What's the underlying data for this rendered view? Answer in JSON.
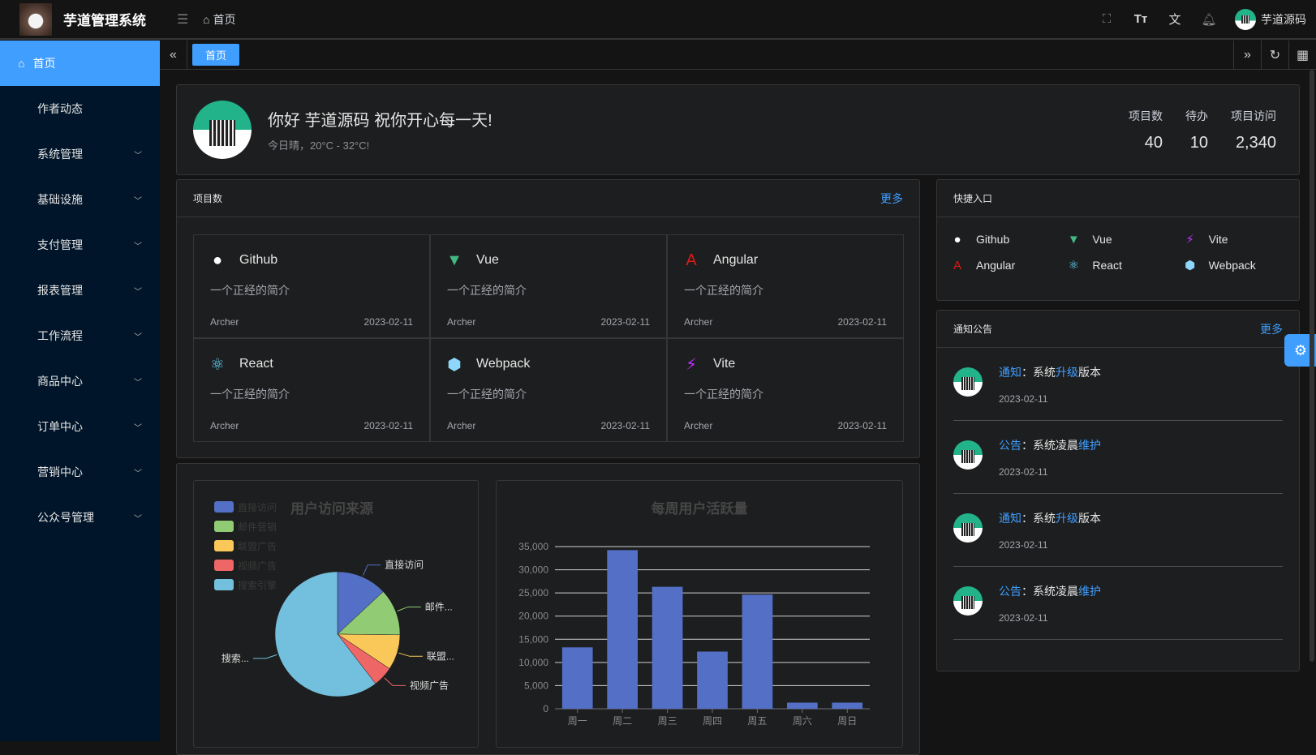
{
  "header": {
    "app_title": "芋道管理系统",
    "breadcrumb": "首页",
    "username": "芋道源码"
  },
  "sidebar": {
    "items": [
      {
        "label": "首页",
        "active": true
      },
      {
        "label": "作者动态"
      },
      {
        "label": "系统管理",
        "expandable": true
      },
      {
        "label": "基础设施",
        "expandable": true
      },
      {
        "label": "支付管理",
        "expandable": true
      },
      {
        "label": "报表管理",
        "expandable": true
      },
      {
        "label": "工作流程",
        "expandable": true
      },
      {
        "label": "商品中心",
        "expandable": true
      },
      {
        "label": "订单中心",
        "expandable": true
      },
      {
        "label": "营销中心",
        "expandable": true
      },
      {
        "label": "公众号管理",
        "expandable": true
      }
    ]
  },
  "tabs": [
    {
      "label": "首页",
      "active": true
    }
  ],
  "welcome": {
    "greeting": "你好 芋道源码 祝你开心每一天!",
    "weather": "今日晴，20°C - 32°C!",
    "stats": [
      {
        "label": "项目数",
        "value": "40"
      },
      {
        "label": "待办",
        "value": "10"
      },
      {
        "label": "项目访问",
        "value": "2,340"
      }
    ]
  },
  "projects": {
    "title": "项目数",
    "more": "更多",
    "items": [
      {
        "name": "Github",
        "icon": "github-icon",
        "color": "#ffffff",
        "desc": "一个正经的简介",
        "author": "Archer",
        "date": "2023-02-11"
      },
      {
        "name": "Vue",
        "icon": "vue-icon",
        "color": "#42b883",
        "desc": "一个正经的简介",
        "author": "Archer",
        "date": "2023-02-11"
      },
      {
        "name": "Angular",
        "icon": "angular-icon",
        "color": "#dd1b16",
        "desc": "一个正经的简介",
        "author": "Archer",
        "date": "2023-02-11"
      },
      {
        "name": "React",
        "icon": "react-icon",
        "color": "#61dafb",
        "desc": "一个正经的简介",
        "author": "Archer",
        "date": "2023-02-11"
      },
      {
        "name": "Webpack",
        "icon": "webpack-icon",
        "color": "#8ed6fb",
        "desc": "一个正经的简介",
        "author": "Archer",
        "date": "2023-02-11"
      },
      {
        "name": "Vite",
        "icon": "vite-icon",
        "color": "#bd34fe",
        "desc": "一个正经的简介",
        "author": "Archer",
        "date": "2023-02-11"
      }
    ]
  },
  "quick": {
    "title": "快捷入口",
    "items": [
      {
        "name": "Github",
        "icon": "github-icon",
        "color": "#ffffff"
      },
      {
        "name": "Vue",
        "icon": "vue-icon",
        "color": "#42b883"
      },
      {
        "name": "Vite",
        "icon": "vite-icon",
        "color": "#bd34fe"
      },
      {
        "name": "Angular",
        "icon": "angular-icon",
        "color": "#dd1b16"
      },
      {
        "name": "React",
        "icon": "react-icon",
        "color": "#61dafb"
      },
      {
        "name": "Webpack",
        "icon": "webpack-icon",
        "color": "#8ed6fb"
      }
    ]
  },
  "notice": {
    "title": "通知公告",
    "more": "更多",
    "items": [
      {
        "type": "通知",
        "sep": "：",
        "p1": "系统",
        "hl": "升级",
        "p2": "版本",
        "date": "2023-02-11"
      },
      {
        "type": "公告",
        "sep": "：",
        "p1": "系统凌晨",
        "hl": "维护",
        "p2": "",
        "date": "2023-02-11"
      },
      {
        "type": "通知",
        "sep": "：",
        "p1": "系统",
        "hl": "升级",
        "p2": "版本",
        "date": "2023-02-11"
      },
      {
        "type": "公告",
        "sep": "：",
        "p1": "系统凌晨",
        "hl": "维护",
        "p2": "",
        "date": "2023-02-11"
      }
    ]
  },
  "chart_data": [
    {
      "type": "pie",
      "title": "用户访问来源",
      "legend_position": "top-left",
      "slices": [
        {
          "name": "直接访问",
          "label": "直接访问",
          "value": 335,
          "color": "#5470c6"
        },
        {
          "name": "邮件营销",
          "label": "邮件...",
          "value": 310,
          "color": "#91cc75"
        },
        {
          "name": "联盟广告",
          "label": "联盟...",
          "value": 234,
          "color": "#fac858"
        },
        {
          "name": "视频广告",
          "label": "视频广告",
          "value": 135,
          "color": "#ee6666"
        },
        {
          "name": "搜索引擎",
          "label": "搜索...",
          "value": 1548,
          "color": "#73c0de"
        }
      ]
    },
    {
      "type": "bar",
      "title": "每周用户活跃量",
      "categories": [
        "周一",
        "周二",
        "周三",
        "周四",
        "周五",
        "周六",
        "周日"
      ],
      "values": [
        13253,
        34235,
        26321,
        12340,
        24643,
        1322,
        1324
      ],
      "ylim": [
        0,
        35000
      ],
      "yticks": [
        "0",
        "5,000",
        "10,000",
        "15,000",
        "20,000",
        "25,000",
        "30,000",
        "35,000"
      ],
      "grid": true,
      "color": "#5470c6"
    }
  ]
}
